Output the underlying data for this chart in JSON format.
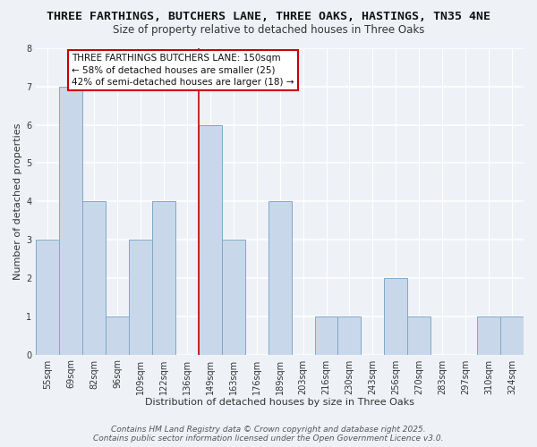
{
  "title": "THREE FARTHINGS, BUTCHERS LANE, THREE OAKS, HASTINGS, TN35 4NE",
  "subtitle": "Size of property relative to detached houses in Three Oaks",
  "xlabel": "Distribution of detached houses by size in Three Oaks",
  "ylabel": "Number of detached properties",
  "bar_color": "#c8d8ea",
  "bar_edge_color": "#7fa8c8",
  "categories": [
    "55sqm",
    "69sqm",
    "82sqm",
    "96sqm",
    "109sqm",
    "122sqm",
    "136sqm",
    "149sqm",
    "163sqm",
    "176sqm",
    "189sqm",
    "203sqm",
    "216sqm",
    "230sqm",
    "243sqm",
    "256sqm",
    "270sqm",
    "283sqm",
    "297sqm",
    "310sqm",
    "324sqm"
  ],
  "values": [
    3,
    7,
    4,
    1,
    3,
    4,
    0,
    6,
    3,
    0,
    4,
    0,
    1,
    1,
    0,
    2,
    1,
    0,
    0,
    1,
    1
  ],
  "highlight_index": 7,
  "highlight_line_color": "#cc0000",
  "annotation_text": "THREE FARTHINGS BUTCHERS LANE: 150sqm\n← 58% of detached houses are smaller (25)\n42% of semi-detached houses are larger (18) →",
  "annotation_box_color": "white",
  "annotation_box_edge_color": "#cc0000",
  "ylim": [
    0,
    8
  ],
  "yticks": [
    0,
    1,
    2,
    3,
    4,
    5,
    6,
    7,
    8
  ],
  "footer_line1": "Contains HM Land Registry data © Crown copyright and database right 2025.",
  "footer_line2": "Contains public sector information licensed under the Open Government Licence v3.0.",
  "background_color": "#eef2f7",
  "grid_color": "white",
  "title_fontsize": 9.5,
  "subtitle_fontsize": 8.5,
  "axis_label_fontsize": 8,
  "tick_fontsize": 7,
  "annotation_fontsize": 7.5,
  "footer_fontsize": 6.5
}
